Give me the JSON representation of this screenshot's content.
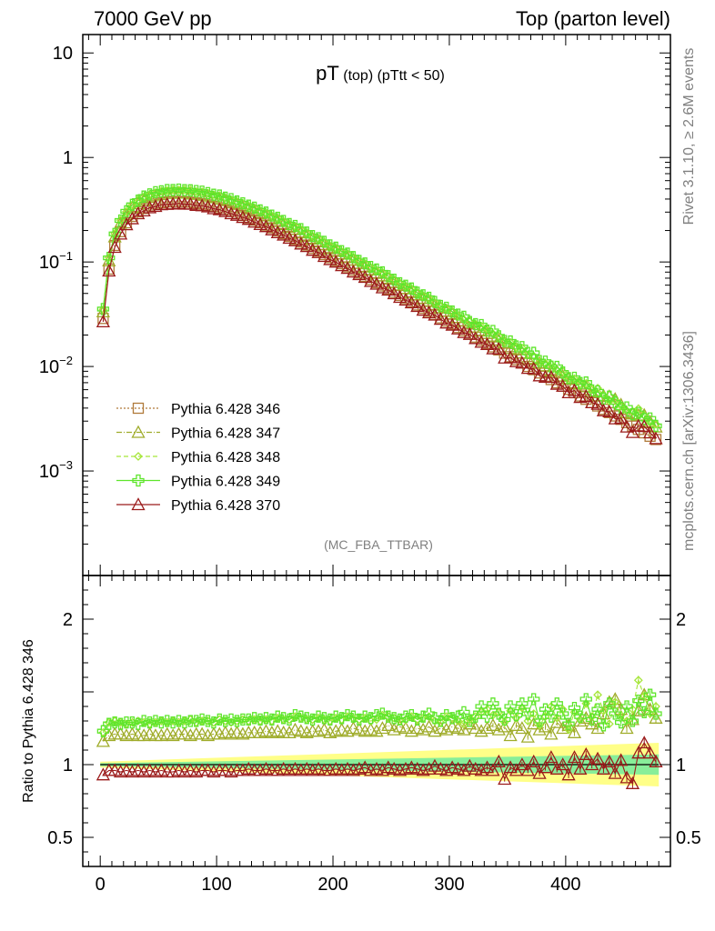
{
  "header": {
    "left": "7000 GeV pp",
    "right": "Top (parton level)"
  },
  "plot_title": {
    "main": "pT",
    "sub": " (top) (pTtt < 50)"
  },
  "analysis_tag": "(MC_FBA_TTBAR)",
  "side_text": {
    "rivet": "Rivet 3.1.10, ≥ 2.6M events",
    "source": "mcplots.cern.ch [arXiv:1306.3436]"
  },
  "ratio_ylabel": "Ratio to Pythia 6.428 346",
  "main_yticks": [
    {
      "v": 10,
      "t": "10",
      "exp": ""
    },
    {
      "v": 1,
      "t": "1",
      "exp": ""
    },
    {
      "v": 0.1,
      "t": "10",
      "exp": "−1"
    },
    {
      "v": 0.01,
      "t": "10",
      "exp": "−2"
    },
    {
      "v": 0.001,
      "t": "10",
      "exp": "−3"
    }
  ],
  "ratio_yticks": [
    {
      "v": 2,
      "t": "2"
    },
    {
      "v": 1,
      "t": "1"
    },
    {
      "v": 0.5,
      "t": "0.5"
    }
  ],
  "xticks": [
    "0",
    "100",
    "200",
    "300",
    "400"
  ],
  "legend": [
    {
      "label": "Pythia 6.428 346",
      "color": "#b07a3a",
      "dash": "2,2",
      "marker": "square"
    },
    {
      "label": "Pythia 6.428 347",
      "color": "#9fac2a",
      "dash": "6,2,1,2",
      "marker": "triangle"
    },
    {
      "label": "Pythia 6.428 348",
      "color": "#a6e63a",
      "dash": "5,3",
      "marker": "diamond"
    },
    {
      "label": "Pythia 6.428 349",
      "color": "#5ee52b",
      "dash": "",
      "marker": "cross"
    },
    {
      "label": "Pythia 6.428 370",
      "color": "#9b1b1b",
      "dash": "",
      "marker": "triangle"
    }
  ],
  "chart_data": {
    "type": "line",
    "log_y": true,
    "xlim": [
      -15,
      490
    ],
    "ylim": [
      0.0001,
      15
    ],
    "ratio_ylim": [
      0.3,
      2.3
    ],
    "x": [
      2.5,
      7.5,
      12.5,
      17.5,
      22.5,
      27.5,
      32.5,
      37.5,
      42.5,
      47.5,
      52.5,
      57.5,
      62.5,
      67.5,
      72.5,
      77.5,
      82.5,
      87.5,
      92.5,
      97.5,
      102.5,
      107.5,
      112.5,
      117.5,
      122.5,
      127.5,
      132.5,
      137.5,
      142.5,
      147.5,
      152.5,
      157.5,
      162.5,
      167.5,
      172.5,
      177.5,
      182.5,
      187.5,
      192.5,
      197.5,
      202.5,
      207.5,
      212.5,
      217.5,
      222.5,
      227.5,
      232.5,
      237.5,
      242.5,
      247.5,
      252.5,
      257.5,
      262.5,
      267.5,
      272.5,
      277.5,
      282.5,
      287.5,
      292.5,
      297.5,
      302.5,
      307.5,
      312.5,
      317.5,
      322.5,
      327.5,
      332.5,
      337.5,
      342.5,
      347.5,
      352.5,
      357.5,
      362.5,
      367.5,
      372.5,
      377.5,
      382.5,
      387.5,
      392.5,
      397.5,
      402.5,
      407.5,
      412.5,
      417.5,
      422.5,
      427.5,
      432.5,
      437.5,
      442.5,
      447.5,
      452.5,
      457.5,
      462.5,
      467.5,
      472.5,
      477.5
    ],
    "reference": [
      0.0288,
      0.0855,
      0.144,
      0.195,
      0.237,
      0.273,
      0.302,
      0.325,
      0.344,
      0.358,
      0.368,
      0.375,
      0.378,
      0.379,
      0.377,
      0.373,
      0.367,
      0.36,
      0.351,
      0.341,
      0.33,
      0.317,
      0.305,
      0.292,
      0.278,
      0.264,
      0.251,
      0.238,
      0.225,
      0.212,
      0.199,
      0.187,
      0.176,
      0.165,
      0.155,
      0.145,
      0.135,
      0.127,
      0.118,
      0.11,
      0.103,
      0.0962,
      0.0897,
      0.0837,
      0.0781,
      0.0728,
      0.0679,
      0.0633,
      0.059,
      0.055,
      0.0513,
      0.0478,
      0.0446,
      0.0416,
      0.0388,
      0.0361,
      0.0337,
      0.0314,
      0.0292,
      0.0272,
      0.0254,
      0.0236,
      0.022,
      0.0205,
      0.0191,
      0.0178,
      0.0166,
      0.0154,
      0.0144,
      0.0134,
      0.0124,
      0.0116,
      0.0108,
      0.01,
      0.00932,
      0.00867,
      0.00807,
      0.0075,
      0.00698,
      0.00649,
      0.00604,
      0.00561,
      0.00522,
      0.00485,
      0.00451,
      0.00419,
      0.00389,
      0.00362,
      0.00336,
      0.00312,
      0.0029,
      0.00269,
      0.0025,
      0.00232,
      0.00215,
      0.002
    ],
    "series": [
      {
        "name": "Pythia 6.428 346",
        "ratio": [
          1.0
        ]
      },
      {
        "name": "Pythia 6.428 347",
        "ratio": [
          1.16,
          1.2,
          1.21,
          1.21,
          1.2,
          1.21,
          1.2,
          1.2,
          1.21,
          1.2,
          1.2,
          1.21,
          1.2,
          1.21,
          1.21,
          1.2,
          1.21,
          1.21,
          1.2,
          1.21,
          1.21,
          1.22,
          1.21,
          1.22,
          1.21,
          1.22,
          1.22,
          1.22,
          1.23,
          1.22,
          1.23,
          1.22,
          1.22,
          1.24,
          1.23,
          1.22,
          1.23,
          1.23,
          1.24,
          1.22,
          1.23,
          1.24,
          1.23,
          1.25,
          1.24,
          1.23,
          1.24,
          1.23,
          1.25,
          1.27,
          1.24,
          1.26,
          1.25,
          1.23,
          1.25,
          1.24,
          1.26,
          1.23,
          1.25,
          1.24,
          1.26,
          1.25,
          1.24,
          1.28,
          1.25,
          1.23,
          1.25,
          1.27,
          1.24,
          1.26,
          1.2,
          1.27,
          1.25,
          1.19,
          1.28,
          1.24,
          1.26,
          1.21,
          1.29,
          1.25,
          1.27,
          1.22,
          1.3,
          1.32,
          1.28,
          1.25,
          1.35,
          1.43,
          1.45,
          1.38,
          1.25,
          1.31,
          1.37,
          1.48,
          1.38,
          1.32
        ]
      },
      {
        "name": "Pythia 6.428 348",
        "ratio": [
          1.22,
          1.29,
          1.3,
          1.29,
          1.28,
          1.29,
          1.3,
          1.29,
          1.28,
          1.29,
          1.3,
          1.29,
          1.3,
          1.29,
          1.3,
          1.31,
          1.29,
          1.3,
          1.3,
          1.29,
          1.31,
          1.3,
          1.29,
          1.3,
          1.31,
          1.3,
          1.31,
          1.3,
          1.31,
          1.3,
          1.32,
          1.31,
          1.31,
          1.33,
          1.32,
          1.31,
          1.31,
          1.32,
          1.31,
          1.3,
          1.32,
          1.31,
          1.33,
          1.32,
          1.31,
          1.32,
          1.3,
          1.31,
          1.34,
          1.33,
          1.32,
          1.3,
          1.31,
          1.33,
          1.31,
          1.32,
          1.33,
          1.3,
          1.29,
          1.33,
          1.32,
          1.3,
          1.28,
          1.31,
          1.33,
          1.36,
          1.38,
          1.34,
          1.36,
          1.29,
          1.37,
          1.32,
          1.39,
          1.3,
          1.35,
          1.27,
          1.33,
          1.4,
          1.32,
          1.38,
          1.24,
          1.36,
          1.31,
          1.42,
          1.33,
          1.48,
          1.37,
          1.28,
          1.43,
          1.34,
          1.3,
          1.38,
          1.58,
          1.47,
          1.35,
          1.4
        ]
      },
      {
        "name": "Pythia 6.428 349",
        "ratio": [
          1.23,
          1.28,
          1.29,
          1.28,
          1.29,
          1.29,
          1.28,
          1.3,
          1.29,
          1.3,
          1.29,
          1.3,
          1.29,
          1.3,
          1.29,
          1.3,
          1.3,
          1.31,
          1.3,
          1.29,
          1.31,
          1.3,
          1.31,
          1.3,
          1.31,
          1.31,
          1.32,
          1.31,
          1.32,
          1.31,
          1.33,
          1.32,
          1.31,
          1.34,
          1.33,
          1.32,
          1.31,
          1.33,
          1.32,
          1.31,
          1.33,
          1.32,
          1.34,
          1.33,
          1.31,
          1.33,
          1.32,
          1.34,
          1.35,
          1.33,
          1.32,
          1.31,
          1.33,
          1.34,
          1.31,
          1.33,
          1.35,
          1.32,
          1.3,
          1.34,
          1.32,
          1.33,
          1.36,
          1.3,
          1.33,
          1.4,
          1.33,
          1.42,
          1.35,
          1.31,
          1.4,
          1.34,
          1.42,
          1.35,
          1.45,
          1.3,
          1.38,
          1.33,
          1.42,
          1.35,
          1.28,
          1.39,
          1.33,
          1.45,
          1.31,
          1.38,
          1.27,
          1.42,
          1.35,
          1.29,
          1.4,
          1.3,
          1.44,
          1.36,
          1.48,
          1.35
        ]
      },
      {
        "name": "Pythia 6.428 370",
        "ratio": [
          0.93,
          0.96,
          0.96,
          0.95,
          0.96,
          0.95,
          0.96,
          0.95,
          0.96,
          0.95,
          0.96,
          0.95,
          0.95,
          0.96,
          0.95,
          0.96,
          0.95,
          0.96,
          0.96,
          0.95,
          0.96,
          0.96,
          0.95,
          0.96,
          0.96,
          0.97,
          0.96,
          0.96,
          0.97,
          0.96,
          0.96,
          0.97,
          0.96,
          0.97,
          0.96,
          0.97,
          0.96,
          0.97,
          0.96,
          0.96,
          0.97,
          0.96,
          0.97,
          0.96,
          0.97,
          0.98,
          0.96,
          0.97,
          0.96,
          0.98,
          0.97,
          0.96,
          0.97,
          0.98,
          0.97,
          0.96,
          0.97,
          0.99,
          0.97,
          0.96,
          0.98,
          0.97,
          0.96,
          0.99,
          0.97,
          0.96,
          0.98,
          0.96,
          1.02,
          0.9,
          0.98,
          0.96,
          1.0,
          0.96,
          1.02,
          0.94,
          0.98,
          1.05,
          0.97,
          1.0,
          0.93,
          1.05,
          0.97,
          1.07,
          1.0,
          1.04,
          0.97,
          1.02,
          0.94,
          1.03,
          0.91,
          0.87,
          1.08,
          1.15,
          1.08,
          1.02
        ]
      }
    ],
    "band_yellow": {
      "x": [
        0,
        480
      ],
      "half_width": [
        0.02,
        0.15
      ]
    },
    "band_green": {
      "x": [
        0,
        480
      ],
      "half_width": [
        0.01,
        0.07
      ]
    }
  }
}
